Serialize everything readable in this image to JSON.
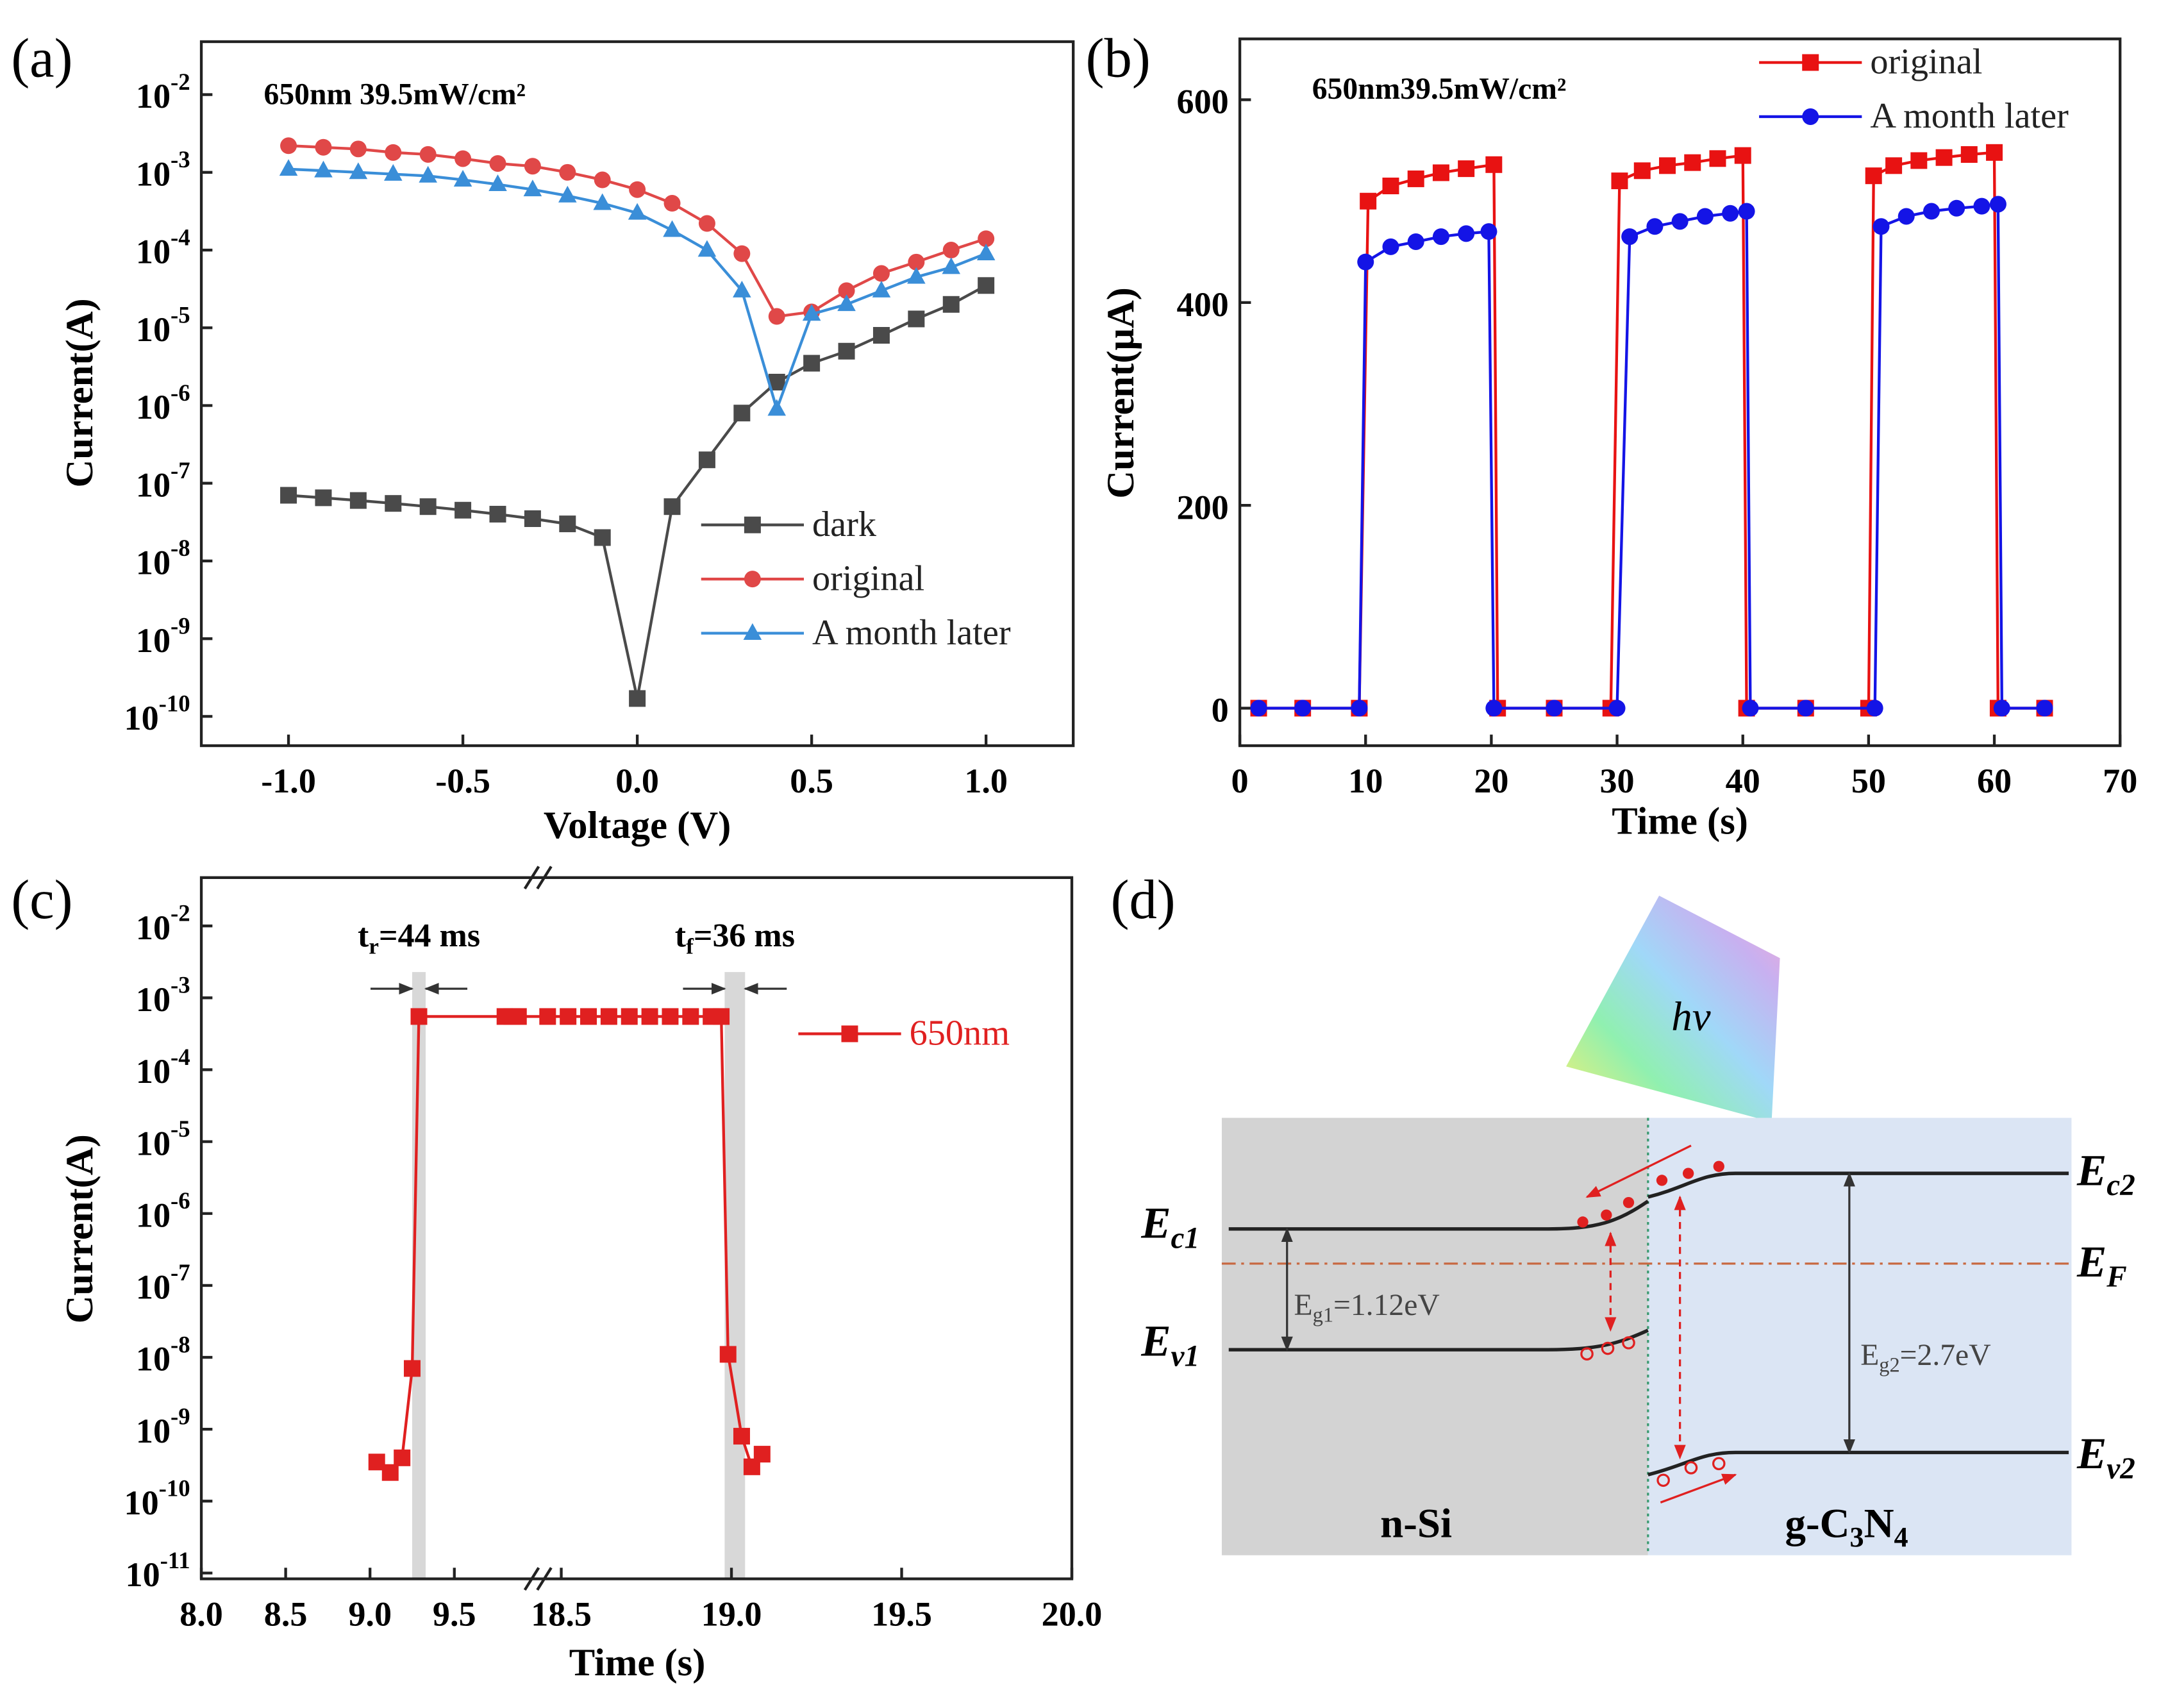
{
  "chart_data": [
    {
      "type": "line",
      "panel_label": "(a)",
      "title": "650nm 39.5mW/cm²",
      "x_label": "Voltage (V)",
      "y_label": "Current(A)",
      "log_y": true,
      "legend": "lower right",
      "xlim": [
        -1.25,
        1.25
      ],
      "xticks": [
        {
          "value": -1.0,
          "label": "-1.0"
        },
        {
          "value": -0.5,
          "label": "-0.5"
        },
        {
          "value": 0.0,
          "label": "0.0"
        },
        {
          "value": 0.5,
          "label": "0.5"
        },
        {
          "value": 1.0,
          "label": "1.0"
        }
      ],
      "ylim": [
        4.2e-11,
        0.048
      ],
      "yticks": [
        {
          "value": 1e-10,
          "label": "10-10"
        },
        {
          "value": 1e-09,
          "label": "10-9"
        },
        {
          "value": 1e-08,
          "label": "10-8"
        },
        {
          "value": 1e-07,
          "label": "10-7"
        },
        {
          "value": 1e-06,
          "label": "10-6"
        },
        {
          "value": 1e-05,
          "label": "10-5"
        },
        {
          "value": 0.0001,
          "label": "10-4"
        },
        {
          "value": 0.001,
          "label": "10-3"
        },
        {
          "value": 0.01,
          "label": "10-2"
        }
      ],
      "x": [
        -1.0,
        -0.9,
        -0.8,
        -0.7,
        -0.6,
        -0.5,
        -0.4,
        -0.3,
        -0.2,
        -0.1,
        0.0,
        0.1,
        0.2,
        0.3,
        0.4,
        0.5,
        0.6,
        0.7,
        0.8,
        0.9,
        1.0
      ],
      "series": [
        {
          "name": "dark",
          "color": "#4a4a4a",
          "marker": "square",
          "values": [
            7e-08,
            6.5e-08,
            6e-08,
            5.5e-08,
            5e-08,
            4.5e-08,
            4e-08,
            3.5e-08,
            3e-08,
            2e-08,
            1.7e-10,
            5e-08,
            2e-07,
            8e-07,
            2e-06,
            3.5e-06,
            5e-06,
            8e-06,
            1.3e-05,
            2e-05,
            3.5e-05
          ]
        },
        {
          "name": "original",
          "color": "#e04848",
          "marker": "circle",
          "values": [
            0.0022,
            0.0021,
            0.002,
            0.0018,
            0.0017,
            0.0015,
            0.0013,
            0.0012,
            0.001,
            0.0008,
            0.0006,
            0.0004,
            0.00022,
            9e-05,
            1.4e-05,
            1.6e-05,
            3e-05,
            5e-05,
            7e-05,
            0.0001,
            0.00014
          ]
        },
        {
          "name": "A month later",
          "color": "#3a8ed8",
          "marker": "triangle",
          "values": [
            0.0011,
            0.00105,
            0.001,
            0.00095,
            0.0009,
            0.0008,
            0.0007,
            0.0006,
            0.0005,
            0.0004,
            0.0003,
            0.00018,
            0.0001,
            3e-05,
            9e-07,
            1.5e-05,
            2e-05,
            3e-05,
            4.5e-05,
            6e-05,
            9e-05
          ]
        }
      ]
    },
    {
      "type": "line",
      "panel_label": "(b)",
      "title": "650nm39.5mW/cm²",
      "x_label": "Time (s)",
      "y_label": "Current(μA)",
      "legend": "upper right",
      "xlim": [
        0,
        70
      ],
      "xticks": [
        0,
        10,
        20,
        30,
        40,
        50,
        60,
        70
      ],
      "ylim": [
        -37,
        660
      ],
      "yticks": [
        0,
        200,
        400,
        600
      ],
      "series": [
        {
          "name": "original",
          "color": "#e81212",
          "marker": "square",
          "x": [
            1.5,
            5,
            9.5,
            10.2,
            12,
            14,
            16,
            18,
            20.2,
            20.5,
            25,
            29.5,
            30.2,
            32,
            34,
            36,
            38,
            40,
            40.3,
            45,
            50,
            50.4,
            52,
            54,
            56,
            58,
            60,
            60.3,
            64
          ],
          "values": [
            0,
            0,
            0,
            500,
            515,
            522,
            528,
            532,
            536,
            0,
            0,
            0,
            520,
            530,
            535,
            538,
            542,
            545,
            0,
            0,
            0,
            525,
            535,
            540,
            543,
            546,
            548,
            0,
            0
          ]
        },
        {
          "name": "A month later",
          "color": "#1414e6",
          "marker": "circle",
          "x": [
            1.5,
            5,
            9.5,
            10,
            12,
            14,
            16,
            18,
            19.8,
            20.2,
            25,
            30,
            31,
            33,
            35,
            37,
            39,
            40.3,
            40.6,
            45,
            50.5,
            51,
            53,
            55,
            57,
            59,
            60.3,
            60.6,
            64
          ],
          "values": [
            0,
            0,
            0,
            440,
            455,
            460,
            465,
            468,
            470,
            0,
            0,
            0,
            465,
            475,
            480,
            485,
            488,
            490,
            0,
            0,
            0,
            475,
            485,
            490,
            493,
            495,
            497,
            0,
            0
          ]
        }
      ]
    },
    {
      "type": "line",
      "panel_label": "(c)",
      "x_label": "Time (s)",
      "y_label": "Current(A)",
      "log_y": true,
      "legend": "center right",
      "xlim": [
        [
          8.0,
          10.0
        ],
        [
          18.45,
          20.0
        ]
      ],
      "xticks": [
        {
          "value": 8.0,
          "label": "8.0"
        },
        {
          "value": 8.5,
          "label": "8.5"
        },
        {
          "value": 9.0,
          "label": "9.0"
        },
        {
          "value": 9.5,
          "label": "9.5"
        },
        {
          "value": 18.5,
          "label": "18.5"
        },
        {
          "value": 19.0,
          "label": "19.0"
        },
        {
          "value": 19.5,
          "label": "19.5"
        },
        {
          "value": 20.0,
          "label": "20.0"
        }
      ],
      "ylim": [
        8.3e-12,
        0.047
      ],
      "yticks": [
        {
          "value": 1e-11,
          "label": "10-11"
        },
        {
          "value": 1e-10,
          "label": "10-10"
        },
        {
          "value": 1e-09,
          "label": "10-9"
        },
        {
          "value": 1e-08,
          "label": "10-8"
        },
        {
          "value": 1e-07,
          "label": "10-7"
        },
        {
          "value": 1e-06,
          "label": "10-6"
        },
        {
          "value": 1e-05,
          "label": "10-5"
        },
        {
          "value": 0.0001,
          "label": "10-4"
        },
        {
          "value": 0.001,
          "label": "10-3"
        },
        {
          "value": 0.01,
          "label": "10-2"
        }
      ],
      "highlights": [
        [
          9.25,
          9.33
        ],
        [
          18.98,
          19.04
        ]
      ],
      "annotations": [
        "tr=44 ms",
        "tf=36 ms"
      ],
      "series": [
        {
          "name": "650nm",
          "color": "#e02020",
          "marker": "square",
          "x": [
            9.04,
            9.12,
            9.19,
            9.25,
            9.29,
            9.8,
            9.84,
            9.88,
            18.46,
            18.52,
            18.58,
            18.64,
            18.7,
            18.76,
            18.82,
            18.88,
            18.94,
            18.97,
            18.99,
            19.03,
            19.06,
            19.09
          ],
          "values": [
            3.5e-10,
            2.5e-10,
            4e-10,
            7e-09,
            0.00055,
            0.00055,
            0.00055,
            0.00055,
            0.00055,
            0.00055,
            0.00055,
            0.00055,
            0.00055,
            0.00055,
            0.00055,
            0.00055,
            0.00055,
            0.00055,
            1.1e-08,
            8e-10,
            3e-10,
            4.5e-10
          ]
        }
      ]
    }
  ],
  "diagram": {
    "panel_label": "(d)",
    "photon": "hν",
    "levels": {
      "ec1": "Ec1",
      "ev1": "Ev1",
      "ec2": "Ec2",
      "ef": "EF",
      "ev2": "Ev2"
    },
    "gaps": {
      "left": "Eg1=1.12eV",
      "right": "Eg2=2.7eV"
    },
    "materials": {
      "left": "n-Si",
      "right": "g-C3N4"
    }
  }
}
